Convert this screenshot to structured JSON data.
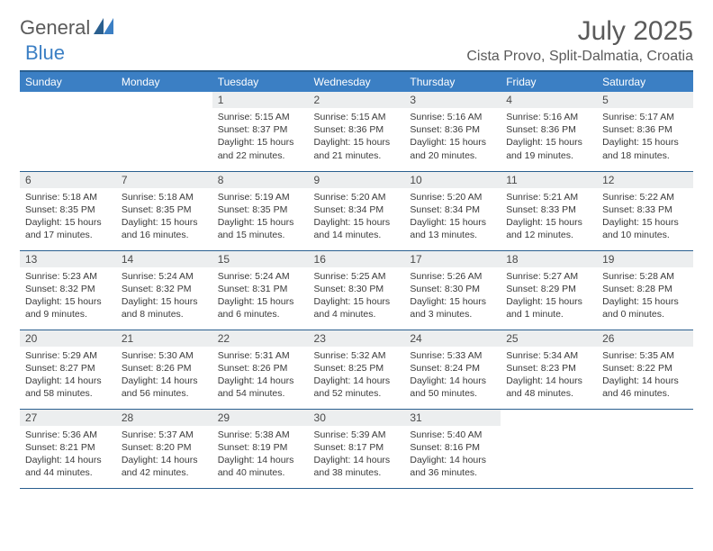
{
  "logo": {
    "text1": "General",
    "text2": "Blue"
  },
  "title": "July 2025",
  "location": "Cista Provo, Split-Dalmatia, Croatia",
  "colors": {
    "header_bg": "#3b7fc4",
    "header_border": "#2a5f8f",
    "daynum_bg": "#eceeef",
    "text_gray": "#5a5a5a",
    "logo_blue": "#3b7fc4"
  },
  "weekdays": [
    "Sunday",
    "Monday",
    "Tuesday",
    "Wednesday",
    "Thursday",
    "Friday",
    "Saturday"
  ],
  "weeks": [
    [
      {
        "empty": true
      },
      {
        "empty": true
      },
      {
        "day": "1",
        "sunrise": "Sunrise: 5:15 AM",
        "sunset": "Sunset: 8:37 PM",
        "daylight1": "Daylight: 15 hours",
        "daylight2": "and 22 minutes."
      },
      {
        "day": "2",
        "sunrise": "Sunrise: 5:15 AM",
        "sunset": "Sunset: 8:36 PM",
        "daylight1": "Daylight: 15 hours",
        "daylight2": "and 21 minutes."
      },
      {
        "day": "3",
        "sunrise": "Sunrise: 5:16 AM",
        "sunset": "Sunset: 8:36 PM",
        "daylight1": "Daylight: 15 hours",
        "daylight2": "and 20 minutes."
      },
      {
        "day": "4",
        "sunrise": "Sunrise: 5:16 AM",
        "sunset": "Sunset: 8:36 PM",
        "daylight1": "Daylight: 15 hours",
        "daylight2": "and 19 minutes."
      },
      {
        "day": "5",
        "sunrise": "Sunrise: 5:17 AM",
        "sunset": "Sunset: 8:36 PM",
        "daylight1": "Daylight: 15 hours",
        "daylight2": "and 18 minutes."
      }
    ],
    [
      {
        "day": "6",
        "sunrise": "Sunrise: 5:18 AM",
        "sunset": "Sunset: 8:35 PM",
        "daylight1": "Daylight: 15 hours",
        "daylight2": "and 17 minutes."
      },
      {
        "day": "7",
        "sunrise": "Sunrise: 5:18 AM",
        "sunset": "Sunset: 8:35 PM",
        "daylight1": "Daylight: 15 hours",
        "daylight2": "and 16 minutes."
      },
      {
        "day": "8",
        "sunrise": "Sunrise: 5:19 AM",
        "sunset": "Sunset: 8:35 PM",
        "daylight1": "Daylight: 15 hours",
        "daylight2": "and 15 minutes."
      },
      {
        "day": "9",
        "sunrise": "Sunrise: 5:20 AM",
        "sunset": "Sunset: 8:34 PM",
        "daylight1": "Daylight: 15 hours",
        "daylight2": "and 14 minutes."
      },
      {
        "day": "10",
        "sunrise": "Sunrise: 5:20 AM",
        "sunset": "Sunset: 8:34 PM",
        "daylight1": "Daylight: 15 hours",
        "daylight2": "and 13 minutes."
      },
      {
        "day": "11",
        "sunrise": "Sunrise: 5:21 AM",
        "sunset": "Sunset: 8:33 PM",
        "daylight1": "Daylight: 15 hours",
        "daylight2": "and 12 minutes."
      },
      {
        "day": "12",
        "sunrise": "Sunrise: 5:22 AM",
        "sunset": "Sunset: 8:33 PM",
        "daylight1": "Daylight: 15 hours",
        "daylight2": "and 10 minutes."
      }
    ],
    [
      {
        "day": "13",
        "sunrise": "Sunrise: 5:23 AM",
        "sunset": "Sunset: 8:32 PM",
        "daylight1": "Daylight: 15 hours",
        "daylight2": "and 9 minutes."
      },
      {
        "day": "14",
        "sunrise": "Sunrise: 5:24 AM",
        "sunset": "Sunset: 8:32 PM",
        "daylight1": "Daylight: 15 hours",
        "daylight2": "and 8 minutes."
      },
      {
        "day": "15",
        "sunrise": "Sunrise: 5:24 AM",
        "sunset": "Sunset: 8:31 PM",
        "daylight1": "Daylight: 15 hours",
        "daylight2": "and 6 minutes."
      },
      {
        "day": "16",
        "sunrise": "Sunrise: 5:25 AM",
        "sunset": "Sunset: 8:30 PM",
        "daylight1": "Daylight: 15 hours",
        "daylight2": "and 4 minutes."
      },
      {
        "day": "17",
        "sunrise": "Sunrise: 5:26 AM",
        "sunset": "Sunset: 8:30 PM",
        "daylight1": "Daylight: 15 hours",
        "daylight2": "and 3 minutes."
      },
      {
        "day": "18",
        "sunrise": "Sunrise: 5:27 AM",
        "sunset": "Sunset: 8:29 PM",
        "daylight1": "Daylight: 15 hours",
        "daylight2": "and 1 minute."
      },
      {
        "day": "19",
        "sunrise": "Sunrise: 5:28 AM",
        "sunset": "Sunset: 8:28 PM",
        "daylight1": "Daylight: 15 hours",
        "daylight2": "and 0 minutes."
      }
    ],
    [
      {
        "day": "20",
        "sunrise": "Sunrise: 5:29 AM",
        "sunset": "Sunset: 8:27 PM",
        "daylight1": "Daylight: 14 hours",
        "daylight2": "and 58 minutes."
      },
      {
        "day": "21",
        "sunrise": "Sunrise: 5:30 AM",
        "sunset": "Sunset: 8:26 PM",
        "daylight1": "Daylight: 14 hours",
        "daylight2": "and 56 minutes."
      },
      {
        "day": "22",
        "sunrise": "Sunrise: 5:31 AM",
        "sunset": "Sunset: 8:26 PM",
        "daylight1": "Daylight: 14 hours",
        "daylight2": "and 54 minutes."
      },
      {
        "day": "23",
        "sunrise": "Sunrise: 5:32 AM",
        "sunset": "Sunset: 8:25 PM",
        "daylight1": "Daylight: 14 hours",
        "daylight2": "and 52 minutes."
      },
      {
        "day": "24",
        "sunrise": "Sunrise: 5:33 AM",
        "sunset": "Sunset: 8:24 PM",
        "daylight1": "Daylight: 14 hours",
        "daylight2": "and 50 minutes."
      },
      {
        "day": "25",
        "sunrise": "Sunrise: 5:34 AM",
        "sunset": "Sunset: 8:23 PM",
        "daylight1": "Daylight: 14 hours",
        "daylight2": "and 48 minutes."
      },
      {
        "day": "26",
        "sunrise": "Sunrise: 5:35 AM",
        "sunset": "Sunset: 8:22 PM",
        "daylight1": "Daylight: 14 hours",
        "daylight2": "and 46 minutes."
      }
    ],
    [
      {
        "day": "27",
        "sunrise": "Sunrise: 5:36 AM",
        "sunset": "Sunset: 8:21 PM",
        "daylight1": "Daylight: 14 hours",
        "daylight2": "and 44 minutes."
      },
      {
        "day": "28",
        "sunrise": "Sunrise: 5:37 AM",
        "sunset": "Sunset: 8:20 PM",
        "daylight1": "Daylight: 14 hours",
        "daylight2": "and 42 minutes."
      },
      {
        "day": "29",
        "sunrise": "Sunrise: 5:38 AM",
        "sunset": "Sunset: 8:19 PM",
        "daylight1": "Daylight: 14 hours",
        "daylight2": "and 40 minutes."
      },
      {
        "day": "30",
        "sunrise": "Sunrise: 5:39 AM",
        "sunset": "Sunset: 8:17 PM",
        "daylight1": "Daylight: 14 hours",
        "daylight2": "and 38 minutes."
      },
      {
        "day": "31",
        "sunrise": "Sunrise: 5:40 AM",
        "sunset": "Sunset: 8:16 PM",
        "daylight1": "Daylight: 14 hours",
        "daylight2": "and 36 minutes."
      },
      {
        "empty": true
      },
      {
        "empty": true
      }
    ]
  ]
}
